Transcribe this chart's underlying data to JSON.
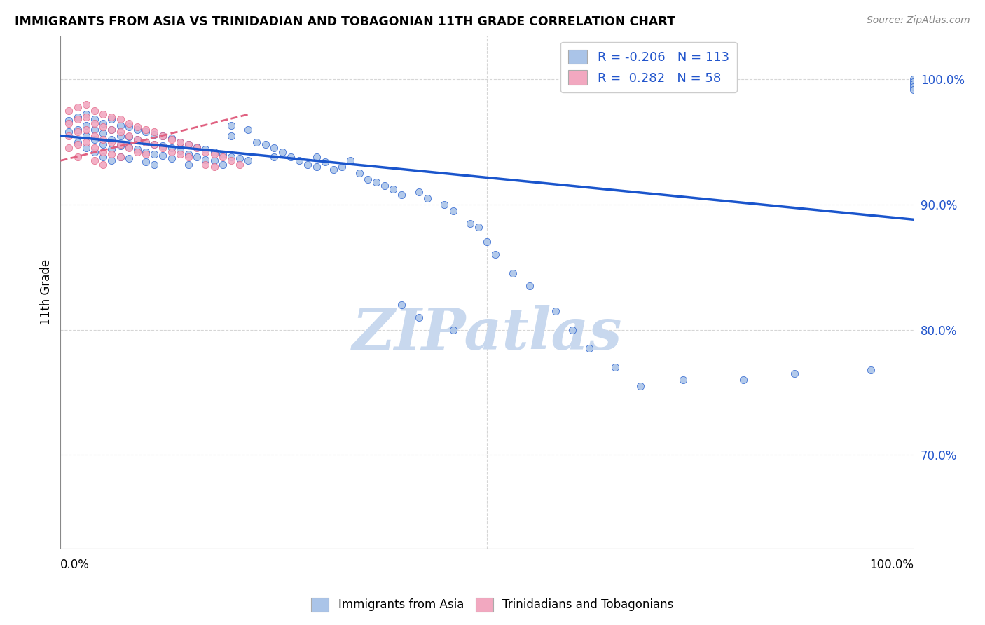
{
  "title": "IMMIGRANTS FROM ASIA VS TRINIDADIAN AND TOBAGONIAN 11TH GRADE CORRELATION CHART",
  "source": "Source: ZipAtlas.com",
  "ylabel": "11th Grade",
  "yticks": [
    "100.0%",
    "90.0%",
    "80.0%",
    "70.0%"
  ],
  "ytick_values": [
    1.0,
    0.9,
    0.8,
    0.7
  ],
  "xlim": [
    0.0,
    1.0
  ],
  "ylim": [
    0.625,
    1.035
  ],
  "legend_r_asia": "-0.206",
  "legend_n_asia": "113",
  "legend_r_tt": "0.282",
  "legend_n_tt": "58",
  "color_asia": "#aac4e8",
  "color_tt": "#f2a8c0",
  "color_asia_line": "#1a55cc",
  "color_tt_line": "#e06080",
  "asia_trend_x0": 0.0,
  "asia_trend_y0": 0.955,
  "asia_trend_x1": 1.0,
  "asia_trend_y1": 0.888,
  "tt_trend_x0": 0.0,
  "tt_trend_y0": 0.935,
  "tt_trend_x1": 0.22,
  "tt_trend_y1": 0.972,
  "scatter_asia_x": [
    0.01,
    0.01,
    0.02,
    0.02,
    0.02,
    0.03,
    0.03,
    0.03,
    0.03,
    0.04,
    0.04,
    0.04,
    0.04,
    0.05,
    0.05,
    0.05,
    0.05,
    0.06,
    0.06,
    0.06,
    0.06,
    0.06,
    0.07,
    0.07,
    0.07,
    0.07,
    0.08,
    0.08,
    0.08,
    0.08,
    0.09,
    0.09,
    0.09,
    0.1,
    0.1,
    0.1,
    0.1,
    0.11,
    0.11,
    0.11,
    0.11,
    0.12,
    0.12,
    0.12,
    0.13,
    0.13,
    0.13,
    0.14,
    0.14,
    0.15,
    0.15,
    0.15,
    0.16,
    0.16,
    0.17,
    0.17,
    0.18,
    0.18,
    0.19,
    0.19,
    0.2,
    0.2,
    0.2,
    0.21,
    0.22,
    0.22,
    0.23,
    0.24,
    0.25,
    0.25,
    0.26,
    0.27,
    0.28,
    0.29,
    0.3,
    0.3,
    0.31,
    0.32,
    0.33,
    0.34,
    0.35,
    0.36,
    0.37,
    0.38,
    0.39,
    0.4,
    0.42,
    0.43,
    0.45,
    0.46,
    0.48,
    0.49,
    0.5,
    0.51,
    0.53,
    0.55,
    0.58,
    0.6,
    0.62,
    0.65,
    0.68,
    0.73,
    0.8,
    0.86,
    0.95,
    1.0,
    1.0,
    1.0,
    1.0,
    1.0,
    0.4,
    0.42,
    0.46
  ],
  "scatter_asia_y": [
    0.967,
    0.958,
    0.97,
    0.96,
    0.95,
    0.972,
    0.963,
    0.955,
    0.945,
    0.968,
    0.96,
    0.952,
    0.942,
    0.965,
    0.957,
    0.948,
    0.938,
    0.968,
    0.96,
    0.952,
    0.944,
    0.935,
    0.963,
    0.955,
    0.947,
    0.938,
    0.962,
    0.954,
    0.946,
    0.937,
    0.96,
    0.952,
    0.944,
    0.958,
    0.95,
    0.942,
    0.934,
    0.956,
    0.948,
    0.94,
    0.932,
    0.955,
    0.947,
    0.939,
    0.953,
    0.945,
    0.937,
    0.95,
    0.943,
    0.948,
    0.94,
    0.932,
    0.946,
    0.938,
    0.944,
    0.936,
    0.942,
    0.935,
    0.94,
    0.932,
    0.963,
    0.955,
    0.938,
    0.937,
    0.96,
    0.935,
    0.95,
    0.948,
    0.945,
    0.938,
    0.942,
    0.938,
    0.935,
    0.932,
    0.938,
    0.93,
    0.934,
    0.928,
    0.93,
    0.935,
    0.925,
    0.92,
    0.918,
    0.915,
    0.912,
    0.908,
    0.91,
    0.905,
    0.9,
    0.895,
    0.885,
    0.882,
    0.87,
    0.86,
    0.845,
    0.835,
    0.815,
    0.8,
    0.785,
    0.77,
    0.755,
    0.76,
    0.76,
    0.765,
    0.768,
    1.0,
    0.998,
    0.996,
    0.994,
    0.992,
    0.82,
    0.81,
    0.8
  ],
  "scatter_tt_x": [
    0.01,
    0.01,
    0.01,
    0.01,
    0.02,
    0.02,
    0.02,
    0.02,
    0.02,
    0.03,
    0.03,
    0.03,
    0.03,
    0.04,
    0.04,
    0.04,
    0.04,
    0.04,
    0.05,
    0.05,
    0.05,
    0.05,
    0.05,
    0.06,
    0.06,
    0.06,
    0.06,
    0.07,
    0.07,
    0.07,
    0.07,
    0.08,
    0.08,
    0.08,
    0.09,
    0.09,
    0.09,
    0.1,
    0.1,
    0.1,
    0.11,
    0.11,
    0.12,
    0.12,
    0.13,
    0.13,
    0.14,
    0.14,
    0.15,
    0.15,
    0.16,
    0.17,
    0.17,
    0.18,
    0.18,
    0.19,
    0.2,
    0.21
  ],
  "scatter_tt_y": [
    0.975,
    0.965,
    0.955,
    0.945,
    0.978,
    0.968,
    0.958,
    0.948,
    0.938,
    0.98,
    0.97,
    0.96,
    0.95,
    0.975,
    0.965,
    0.955,
    0.945,
    0.935,
    0.972,
    0.962,
    0.952,
    0.942,
    0.932,
    0.97,
    0.96,
    0.95,
    0.94,
    0.968,
    0.958,
    0.948,
    0.938,
    0.965,
    0.955,
    0.945,
    0.962,
    0.952,
    0.942,
    0.96,
    0.95,
    0.94,
    0.958,
    0.948,
    0.955,
    0.945,
    0.952,
    0.942,
    0.95,
    0.94,
    0.948,
    0.938,
    0.945,
    0.942,
    0.932,
    0.94,
    0.93,
    0.938,
    0.935,
    0.932
  ],
  "watermark": "ZIPatlas",
  "watermark_color": "#c8d8ee",
  "background_color": "#ffffff"
}
